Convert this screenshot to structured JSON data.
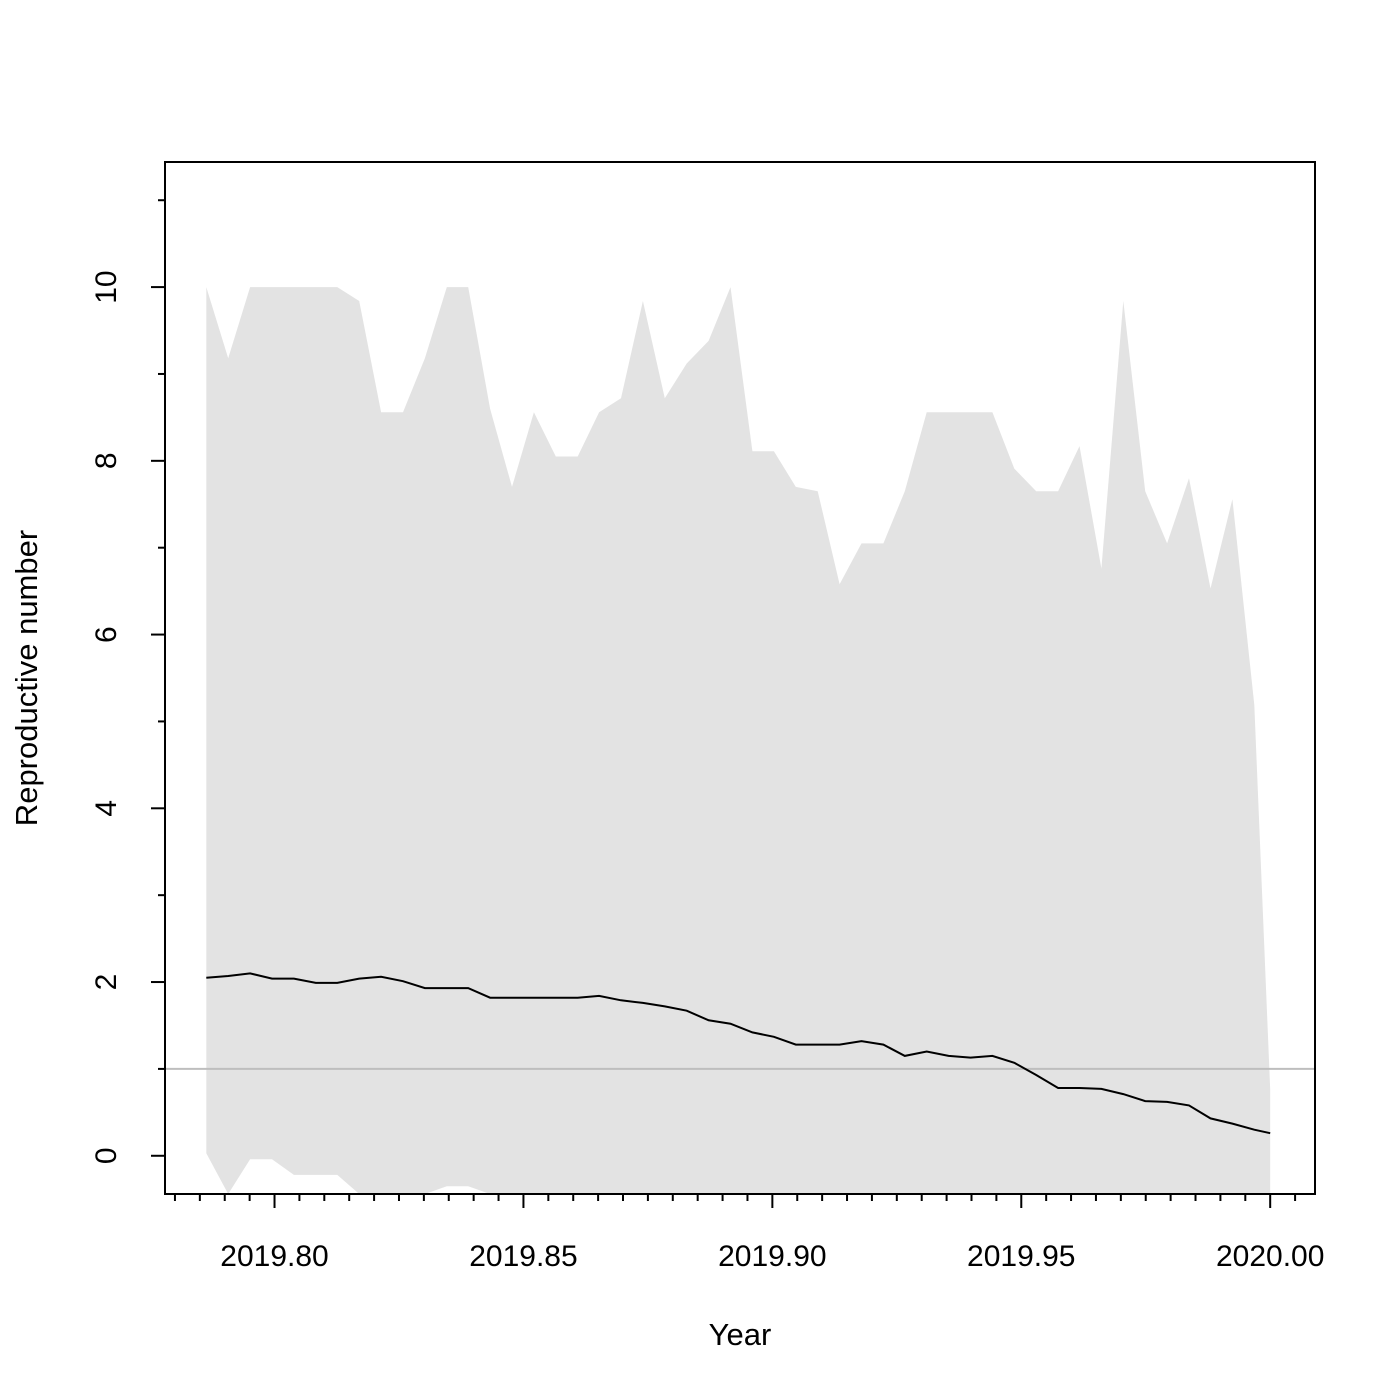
{
  "chart_data": {
    "type": "line",
    "title": "",
    "xlabel": "Year",
    "ylabel": "Reproductive number",
    "xlim": [
      2019.778,
      2020.009
    ],
    "ylim": [
      -0.44,
      11.44
    ],
    "x_ticks": [
      2019.8,
      2019.85,
      2019.9,
      2019.95,
      2020.0
    ],
    "x_tick_labels": [
      "2019.80",
      "2019.85",
      "2019.90",
      "2019.95",
      "2020.00"
    ],
    "y_ticks": [
      0,
      2,
      4,
      6,
      8,
      10
    ],
    "y_tick_labels": [
      "0",
      "2",
      "4",
      "6",
      "8",
      "10"
    ],
    "reference_line": {
      "y": 1,
      "color": "#bebebe"
    },
    "colors": {
      "band": "#e3e3e3",
      "line": "#000000",
      "axes": "#000000"
    },
    "grid": false,
    "legend": "none",
    "series": [
      {
        "x": [
          2019.7863,
          2019.7907,
          2019.7951,
          2019.7995,
          2019.8039,
          2019.8083,
          2019.8126,
          2019.817,
          2019.8214,
          2019.8258,
          2019.8302,
          2019.8346,
          2019.8389,
          2019.8433,
          2019.8477,
          2019.8521,
          2019.8565,
          2019.8609,
          2019.8652,
          2019.8696,
          2019.874,
          2019.8784,
          2019.8828,
          2019.8872,
          2019.8916,
          2019.896,
          2019.9003,
          2019.9047,
          2019.9091,
          2019.9135,
          2019.9179,
          2019.9223,
          2019.9266,
          2019.931,
          2019.9354,
          2019.9398,
          2019.9442,
          2019.9486,
          2019.953,
          2019.9574,
          2019.9617,
          2019.9661,
          2019.9705,
          2019.9749,
          2019.9793,
          2019.9837,
          2019.988,
          2019.9924,
          2019.9968,
          2020.0
        ],
        "values": [
          2.05,
          2.07,
          2.1,
          2.04,
          2.04,
          1.99,
          1.99,
          2.04,
          2.06,
          2.01,
          1.93,
          1.93,
          1.93,
          1.82,
          1.82,
          1.82,
          1.82,
          1.82,
          1.84,
          1.79,
          1.76,
          1.72,
          1.67,
          1.56,
          1.52,
          1.42,
          1.37,
          1.28,
          1.28,
          1.28,
          1.32,
          1.28,
          1.15,
          1.2,
          1.15,
          1.13,
          1.15,
          1.07,
          0.93,
          0.78,
          0.78,
          0.77,
          0.71,
          0.63,
          0.62,
          0.58,
          0.43,
          0.37,
          0.3,
          0.26
        ],
        "lower": [
          0.03,
          -0.44,
          -0.04,
          -0.04,
          -0.22,
          -0.22,
          -0.22,
          -0.44,
          -0.44,
          -0.44,
          -0.44,
          -0.35,
          -0.35,
          -0.44,
          -0.44,
          -0.44,
          -0.44,
          -0.44,
          -0.44,
          -0.44,
          -0.44,
          -0.44,
          -0.44,
          -0.44,
          -0.44,
          -0.44,
          -0.44,
          -0.44,
          -0.44,
          -0.44,
          -0.44,
          -0.44,
          -0.44,
          -0.44,
          -0.44,
          -0.44,
          -0.44,
          -0.44,
          -0.44,
          -0.44,
          -0.44,
          -0.44,
          -0.44,
          -0.44,
          -0.44,
          -0.44,
          -0.44,
          -0.44,
          -0.44,
          -0.44
        ],
        "upper": [
          10.0,
          9.18,
          10.0,
          10.0,
          10.0,
          10.0,
          10.0,
          9.84,
          8.56,
          8.56,
          9.18,
          10.0,
          10.0,
          8.6,
          7.7,
          8.56,
          8.05,
          8.05,
          8.56,
          8.72,
          9.84,
          8.72,
          9.12,
          9.38,
          10.0,
          8.11,
          8.11,
          7.7,
          7.65,
          6.58,
          7.05,
          7.05,
          7.65,
          8.56,
          8.56,
          8.56,
          8.56,
          7.91,
          7.65,
          7.65,
          8.17,
          6.76,
          9.84,
          7.65,
          7.05,
          7.8,
          6.53,
          7.56,
          5.19,
          0.76
        ]
      }
    ]
  }
}
